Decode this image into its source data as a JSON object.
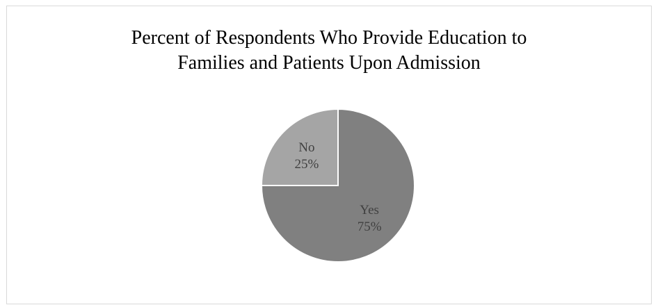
{
  "chart_data": {
    "type": "pie",
    "title_lines": [
      "Percent of Respondents Who Provide Education to",
      "Families and Patients Upon Admission"
    ],
    "slices": [
      {
        "label": "Yes",
        "value": 75,
        "value_label": "75%",
        "color": "#808080"
      },
      {
        "label": "No",
        "value": 25,
        "value_label": "25%",
        "color": "#a5a5a5"
      }
    ],
    "start_angle_deg": 0,
    "direction": "clockwise",
    "slice_border_color": "#ffffff",
    "legend": "none",
    "data_labels": "inside"
  }
}
